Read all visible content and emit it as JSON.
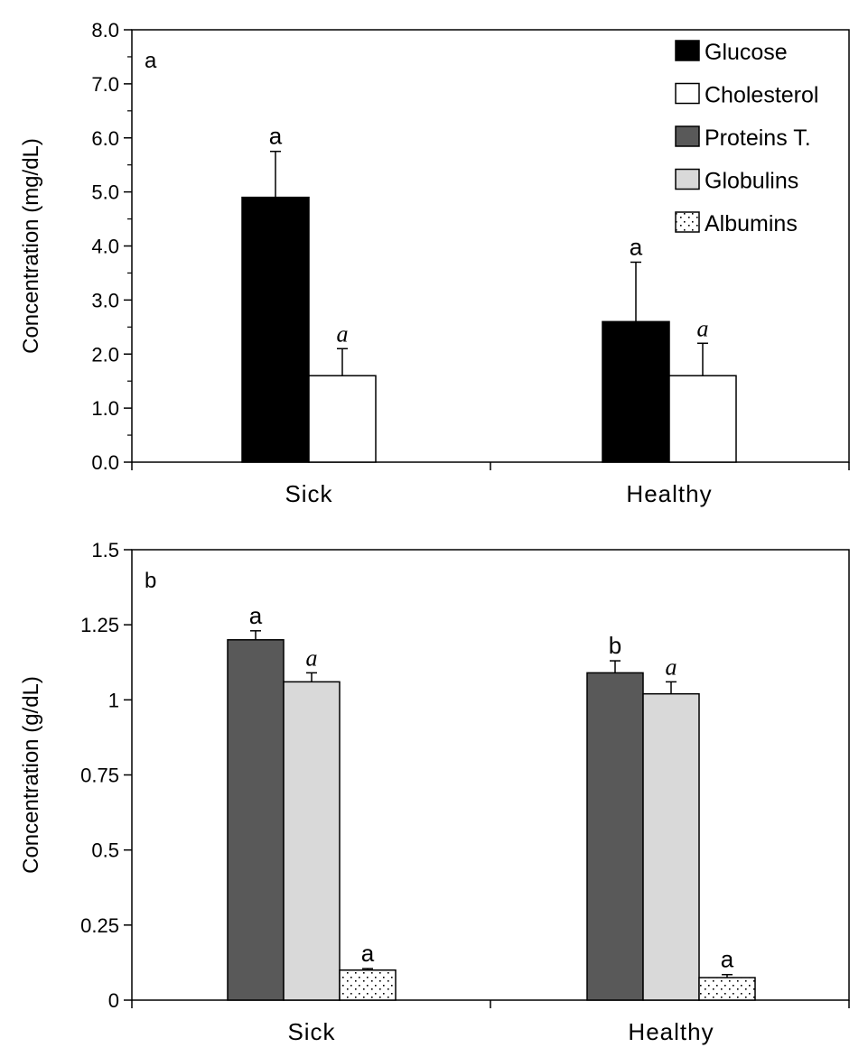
{
  "colors": {
    "Glucose": "#000000",
    "Cholesterol": "#ffffff",
    "Proteins T.": "#595959",
    "Globulins": "#d9d9d9",
    "Albumins": "dotted-pattern"
  },
  "chart_data": [
    {
      "type": "bar",
      "panel_label": "a",
      "categories": [
        "Sick",
        "Healthy"
      ],
      "ylabel": "Concentration (mg/dL)",
      "xlabel": "",
      "ylim": [
        0,
        8
      ],
      "yticks": [
        "0.0",
        "1.0",
        "2.0",
        "3.0",
        "4.0",
        "5.0",
        "6.0",
        "7.0",
        "8.0"
      ],
      "legend_position": "top-right",
      "series": [
        {
          "name": "Glucose",
          "values": [
            4.9,
            2.6
          ],
          "error": [
            0.85,
            1.1
          ],
          "labels": [
            "a",
            "a"
          ]
        },
        {
          "name": "Cholesterol",
          "values": [
            1.6,
            1.6
          ],
          "error": [
            0.5,
            0.6
          ],
          "labels": [
            "a",
            "a"
          ]
        }
      ]
    },
    {
      "type": "bar",
      "panel_label": "b",
      "categories": [
        "Sick",
        "Healthy"
      ],
      "ylabel": "Concentration (g/dL)",
      "xlabel": "",
      "ylim": [
        0,
        1.5
      ],
      "yticks": [
        "0",
        "0.25",
        "0.5",
        "0.75",
        "1",
        "1.25",
        "1.5"
      ],
      "series": [
        {
          "name": "Proteins T.",
          "values": [
            1.2,
            1.09
          ],
          "error": [
            0.03,
            0.04
          ],
          "labels": [
            "a",
            "b"
          ]
        },
        {
          "name": "Globulins",
          "values": [
            1.06,
            1.02
          ],
          "error": [
            0.03,
            0.04
          ],
          "labels": [
            "a",
            "a"
          ]
        },
        {
          "name": "Albumins",
          "values": [
            0.1,
            0.075
          ],
          "error": [
            0.005,
            0.01
          ],
          "labels": [
            "a",
            "a"
          ]
        }
      ]
    }
  ]
}
